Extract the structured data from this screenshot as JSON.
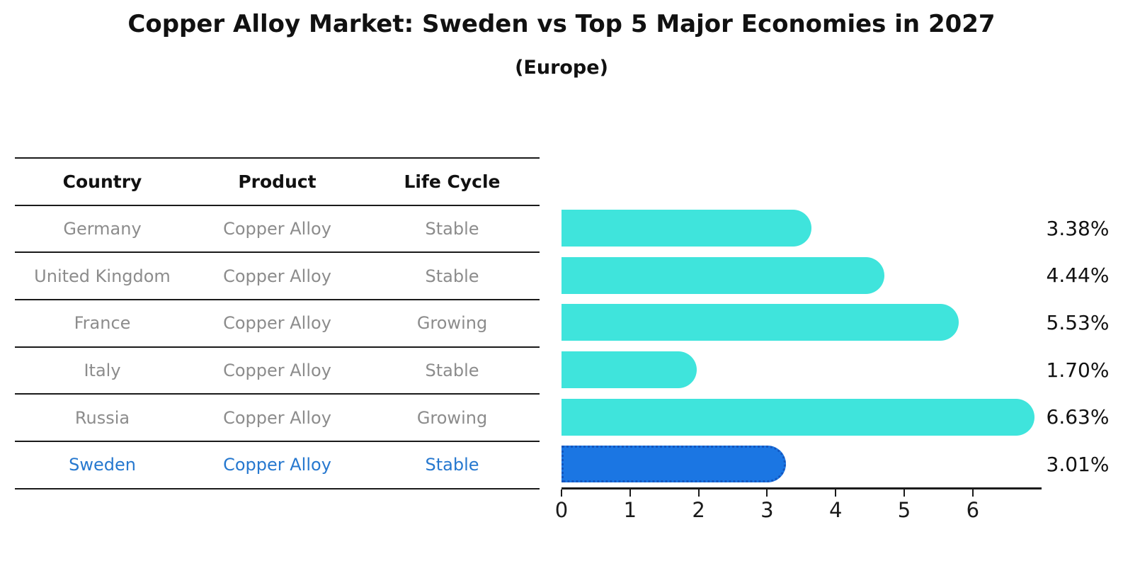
{
  "chart_data": {
    "type": "bar",
    "orientation": "horizontal",
    "title": "Copper Alloy Market: Sweden vs Top 5 Major Economies in 2027",
    "subtitle": "(Europe)",
    "categories": [
      "Germany",
      "United Kingdom",
      "France",
      "Italy",
      "Russia",
      "Sweden"
    ],
    "values": [
      3.38,
      4.44,
      5.53,
      1.7,
      6.63,
      3.01
    ],
    "value_labels": [
      "3.38%",
      "4.44%",
      "5.53%",
      "1.70%",
      "6.63%",
      "3.01%"
    ],
    "x_ticks": [
      "0",
      "1",
      "2",
      "3",
      "4",
      "5",
      "6"
    ],
    "xlim": [
      0,
      7
    ],
    "grid": false,
    "legend": false,
    "highlight_index": 5,
    "xlabel": "",
    "ylabel": ""
  },
  "table": {
    "headers": [
      "Country",
      "Product",
      "Life Cycle"
    ],
    "rows": [
      {
        "country": "Germany",
        "product": "Copper Alloy",
        "life_cycle": "Stable",
        "highlighted": false
      },
      {
        "country": "United Kingdom",
        "product": "Copper Alloy",
        "life_cycle": "Stable",
        "highlighted": false
      },
      {
        "country": "France",
        "product": "Copper Alloy",
        "life_cycle": "Growing",
        "highlighted": false
      },
      {
        "country": "Italy",
        "product": "Copper Alloy",
        "life_cycle": "Stable",
        "highlighted": false
      },
      {
        "country": "Russia",
        "product": "Copper Alloy",
        "life_cycle": "Growing",
        "highlighted": false
      },
      {
        "country": "Sweden",
        "product": "Copper Alloy",
        "life_cycle": "Stable",
        "highlighted": true
      }
    ]
  },
  "colors": {
    "bar": "#3fe4dc",
    "highlight_bar": "#1b76e3",
    "highlight_border": "#1456be",
    "highlight_text": "#2678cf",
    "row_text": "#8c8c8c",
    "header_text": "#111111",
    "axis": "#1a1a1a"
  }
}
